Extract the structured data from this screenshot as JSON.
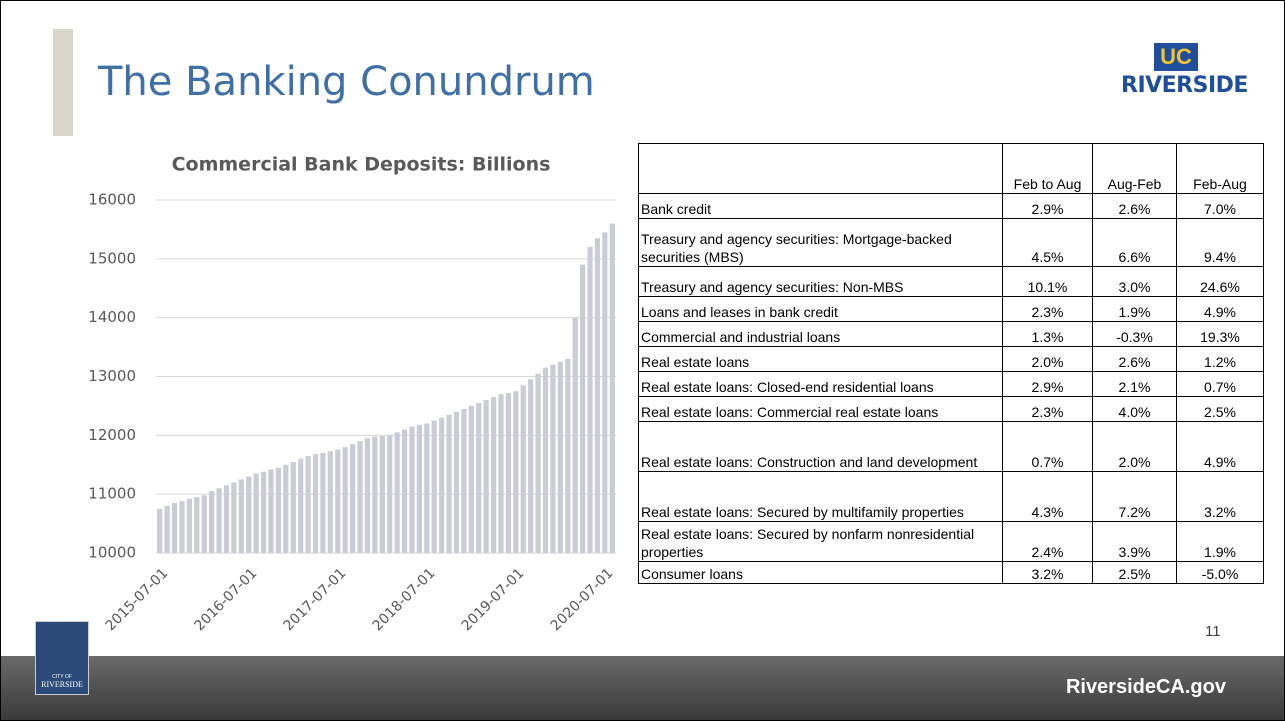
{
  "slide": {
    "title": "The Banking Conundrum",
    "page_number": "11",
    "footer": "RiversideCA.gov",
    "logo": {
      "top": "UC",
      "bottom": "RIVERSIDE"
    },
    "city_logo": {
      "top": "CITY OF",
      "bottom": "RIVERSIDE"
    }
  },
  "chart_data": {
    "type": "bar",
    "title": "Commercial Bank Deposits: Billions",
    "color": "#c9ccd6",
    "categories": [
      "2015-07-01",
      null,
      null,
      null,
      null,
      null,
      null,
      null,
      null,
      null,
      null,
      null,
      "2016-07-01",
      null,
      null,
      null,
      null,
      null,
      null,
      null,
      null,
      null,
      null,
      null,
      "2017-07-01",
      null,
      null,
      null,
      null,
      null,
      null,
      null,
      null,
      null,
      null,
      null,
      "2018-07-01",
      null,
      null,
      null,
      null,
      null,
      null,
      null,
      null,
      null,
      null,
      null,
      "2019-07-01",
      null,
      null,
      null,
      null,
      null,
      null,
      null,
      null,
      null,
      null,
      null,
      "2020-07-01",
      null
    ],
    "values": [
      10750,
      10800,
      10850,
      10880,
      10920,
      10950,
      10980,
      11050,
      11100,
      11150,
      11200,
      11250,
      11300,
      11350,
      11380,
      11420,
      11450,
      11500,
      11550,
      11600,
      11650,
      11680,
      11700,
      11730,
      11760,
      11800,
      11850,
      11900,
      11950,
      11980,
      11990,
      12000,
      12050,
      12100,
      12150,
      12180,
      12200,
      12250,
      12300,
      12350,
      12400,
      12450,
      12500,
      12550,
      12600,
      12650,
      12700,
      12720,
      12750,
      12850,
      12950,
      13050,
      13150,
      13200,
      13250,
      13300,
      14000,
      14900,
      15200,
      15350,
      15450,
      15600
    ],
    "ylim": [
      10000,
      16000
    ],
    "yticks": [
      10000,
      11000,
      12000,
      13000,
      14000,
      15000,
      16000
    ],
    "grid": true
  },
  "table": {
    "header": [
      "Feb to Aug",
      "Aug-Feb",
      "Feb-Aug"
    ],
    "rows": [
      [
        "Bank credit",
        "2.9%",
        "2.6%",
        "7.0%"
      ],
      [
        "Treasury and agency securities: Mortgage-backed securities (MBS)",
        "4.5%",
        "6.6%",
        "9.4%"
      ],
      [
        "Treasury and agency securities: Non-MBS",
        "10.1%",
        "3.0%",
        "24.6%"
      ],
      [
        "Loans and leases in bank credit",
        "2.3%",
        "1.9%",
        "4.9%"
      ],
      [
        "Commercial and industrial loans",
        "1.3%",
        "-0.3%",
        "19.3%"
      ],
      [
        "Real estate loans",
        "2.0%",
        "2.6%",
        "1.2%"
      ],
      [
        "Real estate loans: Closed-end residential loans",
        "2.9%",
        "2.1%",
        "0.7%"
      ],
      [
        "Real estate loans: Commercial real estate loans",
        "2.3%",
        "4.0%",
        "2.5%"
      ],
      [
        "Real estate loans:  Construction and land development",
        "0.7%",
        "2.0%",
        "4.9%"
      ],
      [
        "Real estate loans: Secured by multifamily properties",
        "4.3%",
        "7.2%",
        "3.2%"
      ],
      [
        "Real estate loans: Secured by nonfarm nonresidential properties",
        "2.4%",
        "3.9%",
        "1.9%"
      ],
      [
        "Consumer loans",
        "3.2%",
        "2.5%",
        "-5.0%"
      ]
    ]
  }
}
